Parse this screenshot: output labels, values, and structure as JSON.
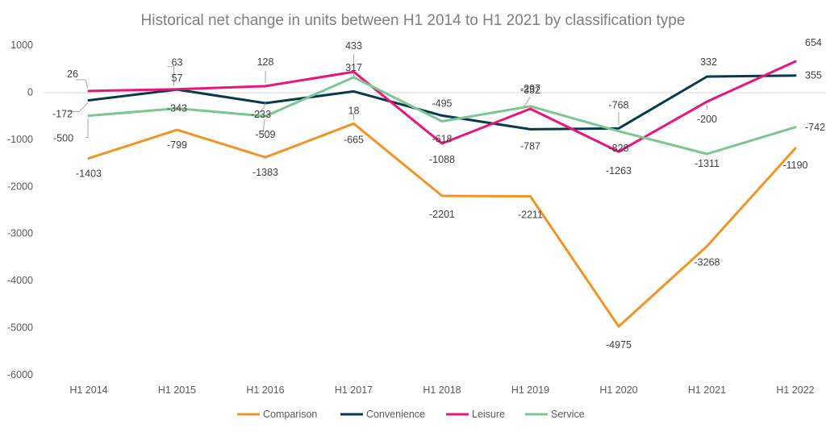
{
  "chart_data": {
    "type": "line",
    "title": "Historical net change in units between H1 2014 to H1 2021 by classification type",
    "xlabel": "",
    "ylabel": "",
    "ylim": [
      -6000,
      1000
    ],
    "yticks": [
      1000,
      0,
      -1000,
      -2000,
      -3000,
      -4000,
      -5000,
      -6000
    ],
    "grid": false,
    "legend": "bottom",
    "categories": [
      "H1 2014",
      "H1 2015",
      "H1 2016",
      "H1 2017",
      "H1 2018",
      "H1 2019",
      "H1 2020",
      "H1 2021",
      "H1 2022"
    ],
    "series": [
      {
        "name": "Comparison",
        "color": "#f39325",
        "values": [
          -1403,
          -799,
          -1383,
          -665,
          -2201,
          -2211,
          -4975,
          -3268,
          -1190
        ],
        "labels": [
          "-1403",
          "-799",
          "-1383",
          "-665",
          "-2201",
          "-2211",
          "-4975",
          "-3268",
          "-1190"
        ]
      },
      {
        "name": "Convenience",
        "color": "#073b4c",
        "values": [
          -172,
          57,
          -233,
          18,
          -495,
          -787,
          -768,
          332,
          355
        ],
        "labels": [
          "-172",
          "57",
          "-233",
          "18",
          "-495",
          "-787",
          "-768",
          "332",
          "355"
        ]
      },
      {
        "name": "Leisure",
        "color": "#ec147a",
        "values": [
          26,
          63,
          128,
          433,
          -1088,
          -352,
          -1263,
          -200,
          654
        ],
        "labels": [
          "26",
          "63",
          "128",
          "433",
          "-1088",
          "-352",
          "-1263",
          "-200",
          "654"
        ]
      },
      {
        "name": "Service",
        "color": "#7cc692",
        "values": [
          -500,
          -343,
          -509,
          317,
          -618,
          -297,
          -828,
          -1311,
          -742
        ],
        "labels": [
          "-500",
          "-343",
          "-509",
          "317",
          "-618",
          "-297",
          "-828",
          "-1311",
          "-742"
        ]
      }
    ]
  }
}
